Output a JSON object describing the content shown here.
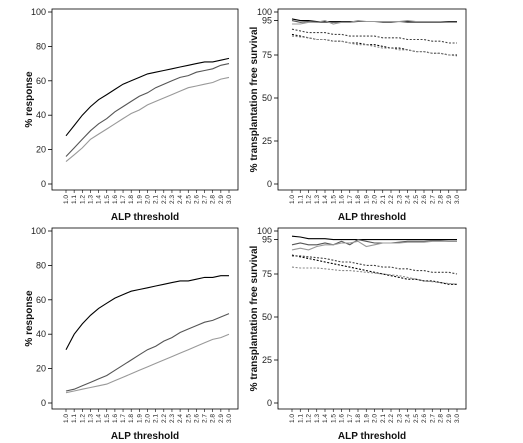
{
  "chart_data": [
    {
      "type": "line",
      "xlabel": "ALP threshold",
      "ylabel": "% response",
      "ylim": [
        0,
        100
      ],
      "yticks": [
        0,
        20,
        40,
        60,
        80,
        100
      ],
      "x": [
        "1.0",
        "1.1",
        "1.2",
        "1.3",
        "1.4",
        "1.5",
        "1.6",
        "1.7",
        "1.8",
        "1.9",
        "2.0",
        "2.1",
        "2.2",
        "2.3",
        "2.4",
        "2.5",
        "2.6",
        "2.7",
        "2.8",
        "2.9",
        "3.0"
      ],
      "series": [
        {
          "color": "#000000",
          "dash": "solid",
          "values": [
            28,
            34,
            40,
            45,
            49,
            52,
            55,
            58,
            60,
            62,
            64,
            65,
            66,
            67,
            68,
            69,
            70,
            71,
            71,
            72,
            73
          ]
        },
        {
          "color": "#555555",
          "dash": "solid",
          "values": [
            16,
            21,
            26,
            31,
            35,
            38,
            42,
            45,
            48,
            51,
            53,
            56,
            58,
            60,
            62,
            63,
            65,
            66,
            67,
            69,
            70
          ]
        },
        {
          "color": "#999999",
          "dash": "solid",
          "values": [
            13,
            17,
            21,
            26,
            29,
            32,
            35,
            38,
            41,
            43,
            46,
            48,
            50,
            52,
            54,
            56,
            57,
            58,
            59,
            61,
            62
          ]
        }
      ]
    },
    {
      "type": "line",
      "xlabel": "ALP threshold",
      "ylabel": "% transplantation free survival",
      "ylim": [
        0,
        100
      ],
      "yticks": [
        0,
        25,
        50,
        75,
        95,
        100
      ],
      "x": [
        "1.0",
        "1.1",
        "1.2",
        "1.3",
        "1.4",
        "1.5",
        "1.6",
        "1.7",
        "1.8",
        "1.9",
        "2.0",
        "2.1",
        "2.2",
        "2.3",
        "2.4",
        "2.5",
        "2.6",
        "2.7",
        "2.8",
        "2.9",
        "3.0"
      ],
      "series": [
        {
          "color": "#000000",
          "dash": "solid",
          "values": [
            96,
            95,
            95,
            94.5,
            94.5,
            94.5,
            94.5,
            94.5,
            94.5,
            94.5,
            94.5,
            94.5,
            94.5,
            94.5,
            94.5,
            94.5,
            94.5,
            94.5,
            94.5,
            94.5,
            94.5
          ]
        },
        {
          "color": "#555555",
          "dash": "solid",
          "values": [
            95,
            94,
            94.5,
            94,
            94,
            94,
            94,
            94,
            94.5,
            94.5,
            94.5,
            94,
            94,
            94.5,
            94,
            94,
            94,
            94,
            94,
            94,
            94
          ]
        },
        {
          "color": "#999999",
          "dash": "solid",
          "values": [
            93,
            93,
            94,
            94,
            95,
            93,
            94,
            94,
            95,
            94.5,
            94.5,
            94.5,
            94.5,
            94.5,
            95,
            94.5,
            94.5,
            94.5,
            94.5,
            94,
            94
          ]
        },
        {
          "color": "#444444",
          "dash": "dashed",
          "values": [
            90,
            89,
            88,
            88,
            88,
            87,
            87,
            86,
            86,
            86,
            86,
            85,
            85,
            85,
            84,
            84,
            84,
            83,
            83,
            82,
            82
          ]
        },
        {
          "color": "#000000",
          "dash": "dashed",
          "values": [
            87,
            86,
            85,
            84,
            84,
            83,
            83,
            82,
            82,
            81,
            81,
            80,
            79,
            79,
            78,
            77,
            77,
            76,
            76,
            75,
            75
          ]
        },
        {
          "color": "#888888",
          "dash": "dashed",
          "values": [
            86,
            85.5,
            85,
            84,
            84,
            83,
            83,
            82,
            81,
            81,
            80,
            79,
            79,
            78,
            78,
            77,
            77,
            76,
            76,
            75,
            74.5
          ]
        }
      ]
    },
    {
      "type": "line",
      "xlabel": "ALP threshold",
      "ylabel": "% response",
      "ylim": [
        0,
        100
      ],
      "yticks": [
        0,
        20,
        40,
        60,
        80,
        100
      ],
      "x": [
        "1.0",
        "1.1",
        "1.2",
        "1.3",
        "1.4",
        "1.5",
        "1.6",
        "1.7",
        "1.8",
        "1.9",
        "2.0",
        "2.1",
        "2.2",
        "2.3",
        "2.4",
        "2.5",
        "2.6",
        "2.7",
        "2.8",
        "2.9",
        "3.0"
      ],
      "series": [
        {
          "color": "#000000",
          "dash": "solid",
          "values": [
            31,
            40,
            46,
            51,
            55,
            58,
            61,
            63,
            65,
            66,
            67,
            68,
            69,
            70,
            71,
            71,
            72,
            73,
            73,
            74,
            74
          ]
        },
        {
          "color": "#555555",
          "dash": "solid",
          "values": [
            7,
            8,
            10,
            12,
            14,
            16,
            19,
            22,
            25,
            28,
            31,
            33,
            36,
            38,
            41,
            43,
            45,
            47,
            48,
            50,
            52
          ]
        },
        {
          "color": "#999999",
          "dash": "solid",
          "values": [
            6,
            7,
            8,
            9,
            10,
            11,
            13,
            15,
            17,
            19,
            21,
            23,
            25,
            27,
            29,
            31,
            33,
            35,
            37,
            38,
            40
          ]
        }
      ]
    },
    {
      "type": "line",
      "xlabel": "ALP threshold",
      "ylabel": "% transplantation free survival",
      "ylim": [
        0,
        100
      ],
      "yticks": [
        0,
        25,
        50,
        75,
        95,
        100
      ],
      "x": [
        "1.0",
        "1.1",
        "1.2",
        "1.3",
        "1.4",
        "1.5",
        "1.6",
        "1.7",
        "1.8",
        "1.9",
        "2.0",
        "2.1",
        "2.2",
        "2.3",
        "2.4",
        "2.5",
        "2.6",
        "2.7",
        "2.8",
        "2.9",
        "3.0"
      ],
      "series": [
        {
          "color": "#000000",
          "dash": "solid",
          "values": [
            97,
            96.5,
            95.5,
            95.5,
            95.5,
            95,
            95,
            95,
            95,
            95,
            95,
            95,
            95,
            95,
            95,
            95,
            95,
            95,
            95,
            95,
            95
          ]
        },
        {
          "color": "#555555",
          "dash": "solid",
          "values": [
            92,
            93,
            92,
            92,
            93,
            92,
            94,
            92,
            95,
            94,
            93,
            93,
            93,
            93.5,
            94,
            94,
            94,
            94.5,
            94.5,
            94,
            94
          ]
        },
        {
          "color": "#999999",
          "dash": "solid",
          "values": [
            89,
            90,
            89,
            91,
            92,
            92,
            93,
            93,
            94,
            91,
            92,
            93,
            93,
            93,
            93.5,
            93.5,
            93.5,
            94,
            94,
            94,
            94
          ]
        },
        {
          "color": "#000000",
          "dash": "dashed",
          "values": [
            86,
            85,
            84,
            83,
            82,
            81,
            80,
            79,
            78,
            77,
            76,
            75,
            74,
            73,
            72,
            72,
            71,
            71,
            70,
            69,
            69
          ]
        },
        {
          "color": "#444444",
          "dash": "dashed",
          "values": [
            85.5,
            85.5,
            85,
            84.5,
            84,
            83,
            82,
            82,
            81,
            80,
            80,
            79,
            79,
            78,
            78,
            77,
            77,
            76,
            76,
            76,
            75
          ]
        },
        {
          "color": "#888888",
          "dash": "dashed",
          "values": [
            79,
            78.5,
            78.5,
            78.5,
            78,
            77.5,
            77,
            77,
            76.5,
            76,
            75.5,
            75,
            74.5,
            74,
            73,
            72,
            71,
            70.5,
            70,
            69.5,
            69
          ]
        }
      ]
    }
  ]
}
